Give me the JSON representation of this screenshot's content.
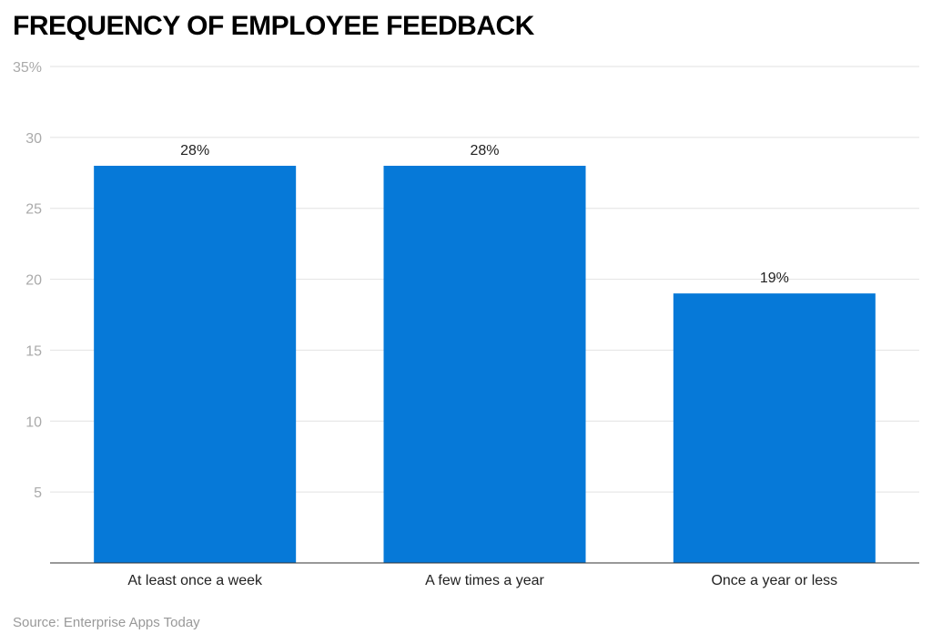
{
  "chart_data": {
    "type": "bar",
    "title": "FREQUENCY OF EMPLOYEE FEEDBACK",
    "categories": [
      "At least once a week",
      "A few times a year",
      "Once a year or less"
    ],
    "values": [
      28,
      28,
      19
    ],
    "data_labels": [
      "28%",
      "28%",
      "19%"
    ],
    "xlabel": "",
    "ylabel": "",
    "ylim": [
      0,
      35
    ],
    "yticks": [
      5,
      10,
      15,
      20,
      25,
      30,
      35
    ],
    "ytick_labels": [
      "5",
      "10",
      "15",
      "20",
      "25",
      "30",
      "35%"
    ],
    "grid": true,
    "bar_color": "#0679d8",
    "source": "Source: Enterprise Apps Today"
  }
}
